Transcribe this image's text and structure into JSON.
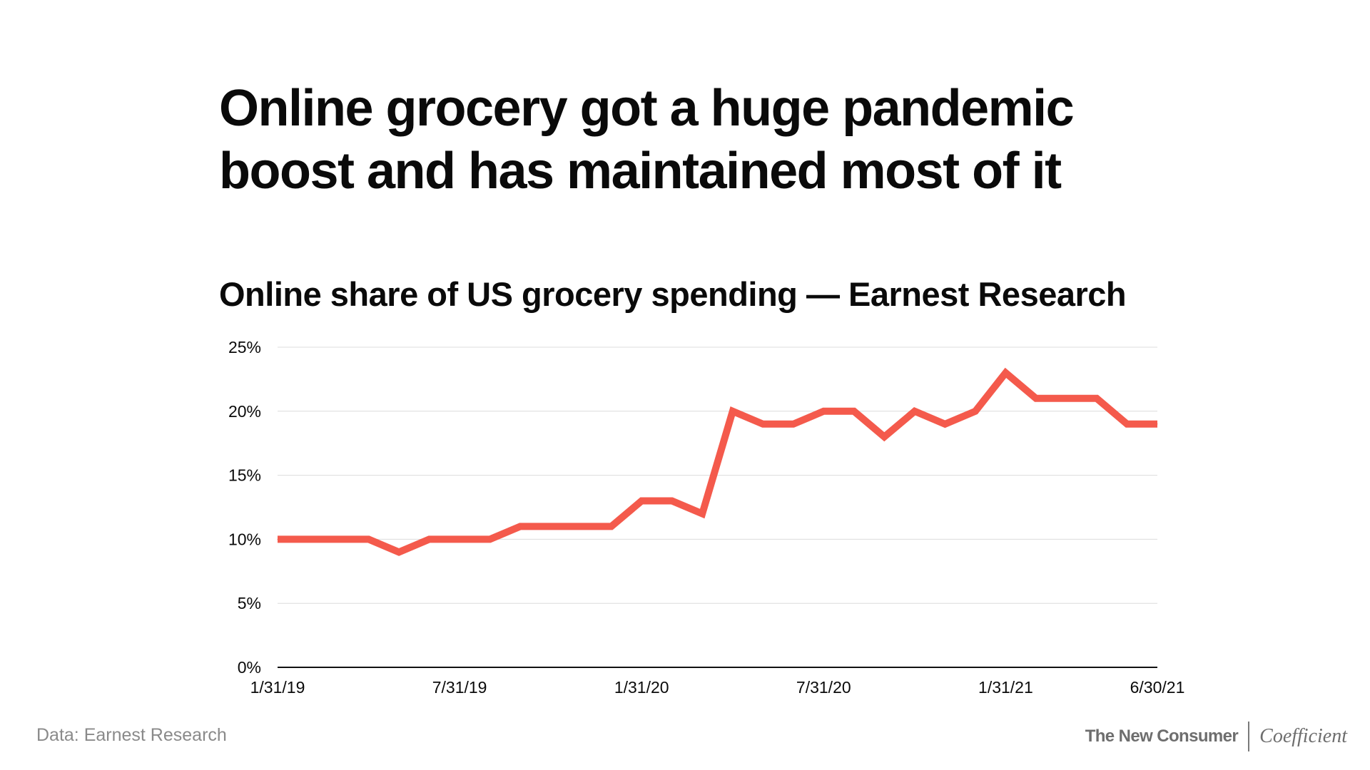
{
  "headline": "Online grocery got a huge pandemic boost and has maintained most of it",
  "chart_data": {
    "type": "line",
    "title": "Online share of US grocery spending — Earnest Research",
    "xlabel": "",
    "ylabel": "",
    "x": [
      "1/31/19",
      "2/28/19",
      "3/31/19",
      "4/30/19",
      "5/31/19",
      "6/30/19",
      "7/31/19",
      "8/31/19",
      "9/30/19",
      "10/31/19",
      "11/30/19",
      "12/31/19",
      "1/31/20",
      "2/29/20",
      "3/31/20",
      "4/30/20",
      "5/31/20",
      "6/30/20",
      "7/31/20",
      "8/31/20",
      "9/30/20",
      "10/31/20",
      "11/30/20",
      "12/31/20",
      "1/31/21",
      "2/28/21",
      "3/31/21",
      "4/30/21",
      "5/31/21",
      "6/30/21"
    ],
    "x_tick_labels": [
      "1/31/19",
      "7/31/19",
      "1/31/20",
      "7/31/20",
      "1/31/21",
      "6/30/21"
    ],
    "y_tick_labels": [
      "0%",
      "5%",
      "10%",
      "15%",
      "20%",
      "25%"
    ],
    "ylim": [
      0,
      25
    ],
    "y_unit": "%",
    "grid": true,
    "series": [
      {
        "values": [
          10,
          10,
          10,
          10,
          9,
          10,
          10,
          10,
          11,
          11,
          11,
          11,
          13,
          13,
          12,
          20,
          19,
          19,
          20,
          20,
          18,
          20,
          19,
          20,
          23,
          21,
          21,
          21,
          19,
          19
        ],
        "color": "#f45a4c"
      }
    ]
  },
  "source_note": "Data: Earnest Research",
  "brand": {
    "primary": "The New Consumer",
    "secondary": "Coefficient"
  },
  "colors": {
    "line": "#f45a4c",
    "grid": "#dcdcdc",
    "axis": "#111111",
    "text": "#0a0a0a",
    "muted": "#8a8a8a"
  }
}
